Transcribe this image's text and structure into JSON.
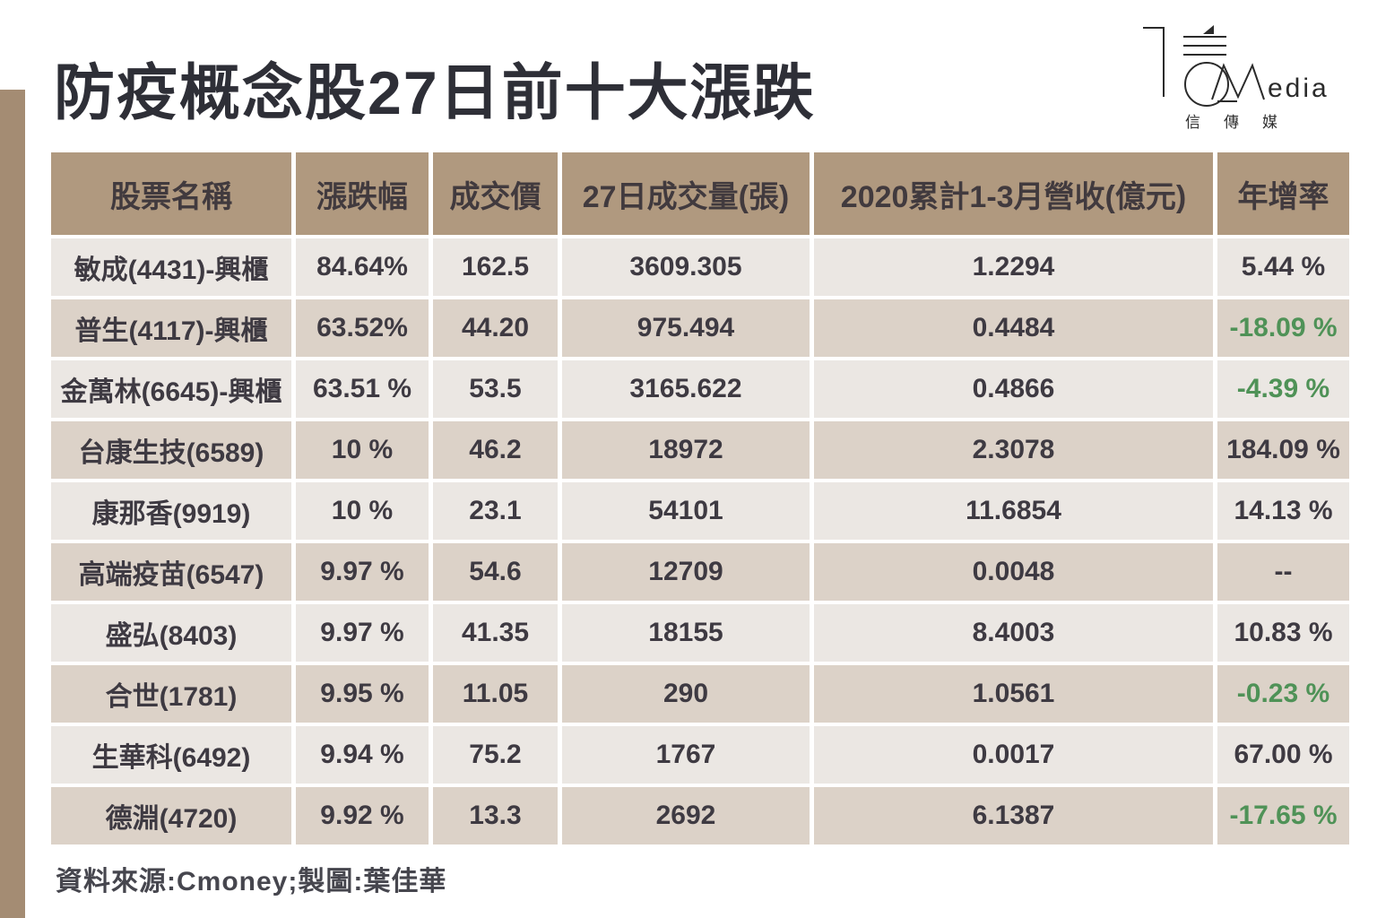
{
  "page": {
    "title": "防疫概念股27日前十大漲跌",
    "source_note": "資料來源:Cmoney;製圖:葉佳華"
  },
  "logo": {
    "brand_main": "M",
    "brand_rest": "edia",
    "subtitle": "信  傳  媒"
  },
  "colors": {
    "header_bg": "#b0997f",
    "row_light": "#ebe7e3",
    "row_dark": "#dcd2c8",
    "side_strip": "#a48c73",
    "negative_green": "#4f9257",
    "text_dark": "#3e3a42"
  },
  "table": {
    "headers": [
      "股票名稱",
      "漲跌幅",
      "成交價",
      "27日成交量(張)",
      "2020累計1-3月營收(億元)",
      "年增率"
    ],
    "rows": [
      {
        "name": "敏成(4431)-興櫃",
        "change": "84.64%",
        "price": "162.5",
        "volume": "3609.305",
        "revenue": "1.2294",
        "yoy": "5.44 %",
        "yoy_negative": false
      },
      {
        "name": "普生(4117)-興櫃",
        "change": "63.52%",
        "price": "44.20",
        "volume": "975.494",
        "revenue": "0.4484",
        "yoy": "-18.09 %",
        "yoy_negative": true
      },
      {
        "name": "金萬林(6645)-興櫃",
        "change": "63.51 %",
        "price": "53.5",
        "volume": "3165.622",
        "revenue": "0.4866",
        "yoy": "-4.39 %",
        "yoy_negative": true
      },
      {
        "name": "台康生技(6589)",
        "change": "10 %",
        "price": "46.2",
        "volume": "18972",
        "revenue": "2.3078",
        "yoy": "184.09 %",
        "yoy_negative": false
      },
      {
        "name": "康那香(9919)",
        "change": "10 %",
        "price": "23.1",
        "volume": "54101",
        "revenue": "11.6854",
        "yoy": "14.13 %",
        "yoy_negative": false
      },
      {
        "name": "高端疫苗(6547)",
        "change": "9.97 %",
        "price": "54.6",
        "volume": "12709",
        "revenue": "0.0048",
        "yoy": "--",
        "yoy_negative": false
      },
      {
        "name": "盛弘(8403)",
        "change": "9.97 %",
        "price": "41.35",
        "volume": "18155",
        "revenue": "8.4003",
        "yoy": "10.83 %",
        "yoy_negative": false
      },
      {
        "name": "合世(1781)",
        "change": "9.95 %",
        "price": "11.05",
        "volume": "290",
        "revenue": "1.0561",
        "yoy": "-0.23 %",
        "yoy_negative": true
      },
      {
        "name": "生華科(6492)",
        "change": "9.94 %",
        "price": "75.2",
        "volume": "1767",
        "revenue": "0.0017",
        "yoy": "67.00 %",
        "yoy_negative": false
      },
      {
        "name": "德淵(4720)",
        "change": "9.92 %",
        "price": "13.3",
        "volume": "2692",
        "revenue": "6.1387",
        "yoy": "-17.65 %",
        "yoy_negative": true
      }
    ]
  }
}
